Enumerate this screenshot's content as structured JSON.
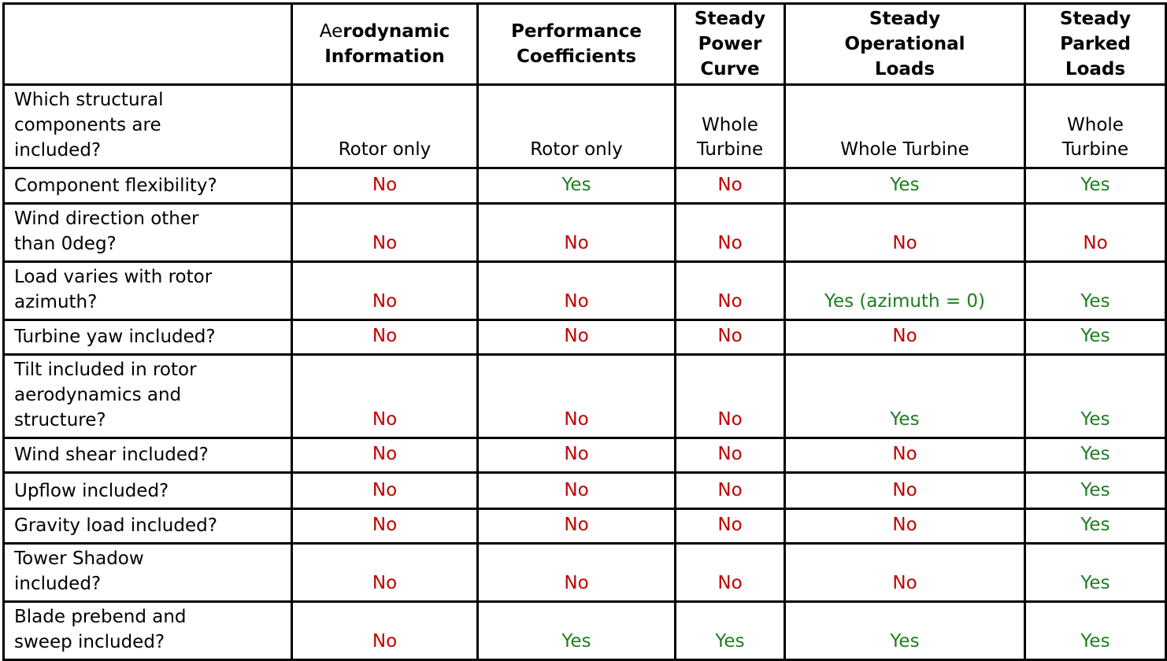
{
  "colors": {
    "yes": "#1e7d1e",
    "no": "#c00000",
    "border": "#000000",
    "text": "#000000",
    "background": "#ffffff"
  },
  "table": {
    "header_row": {
      "corner": "",
      "aero": {
        "normal_part": "Ae",
        "bold_part": "rodynamic\nInformation"
      },
      "others": [
        "Performance\nCoefficients",
        "Steady\nPower\nCurve",
        "Steady\nOperational\nLoads",
        "Steady\nParked\nLoads"
      ]
    },
    "rows": [
      {
        "question": "Which structural\ncomponents are\nincluded?",
        "values": [
          "Rotor only",
          "Rotor only",
          "Whole\nTurbine",
          "Whole Turbine",
          "Whole\nTurbine"
        ]
      },
      {
        "question": "Component flexibility?",
        "values": [
          "No",
          "Yes",
          "No",
          "Yes",
          "Yes"
        ]
      },
      {
        "question": "Wind direction other\nthan 0deg?",
        "values": [
          "No",
          "No",
          "No",
          "No",
          "No"
        ]
      },
      {
        "question": "Load varies with rotor\nazimuth?",
        "values": [
          "No",
          "No",
          "No",
          "Yes (azimuth = 0)",
          "Yes"
        ]
      },
      {
        "question": "Turbine yaw included?",
        "values": [
          "No",
          "No",
          "No",
          "No",
          "Yes"
        ]
      },
      {
        "question": "Tilt included in rotor\naerodynamics and\nstructure?",
        "values": [
          "No",
          "No",
          "No",
          "Yes",
          "Yes"
        ]
      },
      {
        "question": "Wind shear included?",
        "values": [
          "No",
          "No",
          "No",
          "No",
          "Yes"
        ]
      },
      {
        "question": "Upflow included?",
        "values": [
          "No",
          "No",
          "No",
          "No",
          "Yes"
        ]
      },
      {
        "question": "Gravity load included?",
        "values": [
          "No",
          "No",
          "No",
          "No",
          "Yes"
        ]
      },
      {
        "question": "Tower Shadow\nincluded?",
        "values": [
          "No",
          "No",
          "No",
          "No",
          "Yes"
        ]
      },
      {
        "question": "Blade prebend and\nsweep included?",
        "values": [
          "No",
          "Yes",
          "Yes",
          "Yes",
          "Yes"
        ]
      }
    ]
  }
}
